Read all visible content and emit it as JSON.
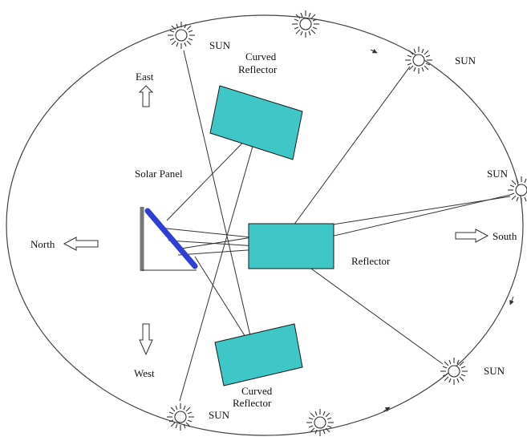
{
  "labels": {
    "sun": "SUN",
    "east": "East",
    "west": "West",
    "north": "North",
    "south": "South",
    "solar_panel": "Solar Panel",
    "reflector": "Reflector",
    "curved_reflector_line1": "Curved",
    "curved_reflector_line2": "Reflector"
  },
  "colors": {
    "reflector": "#3fc6c6",
    "solar_panel": "#2f3fd6",
    "stroke": "#333333"
  },
  "icons": [
    "sun-icon",
    "arrow-up-icon",
    "arrow-down-icon",
    "arrow-left-icon",
    "arrow-right-icon"
  ]
}
